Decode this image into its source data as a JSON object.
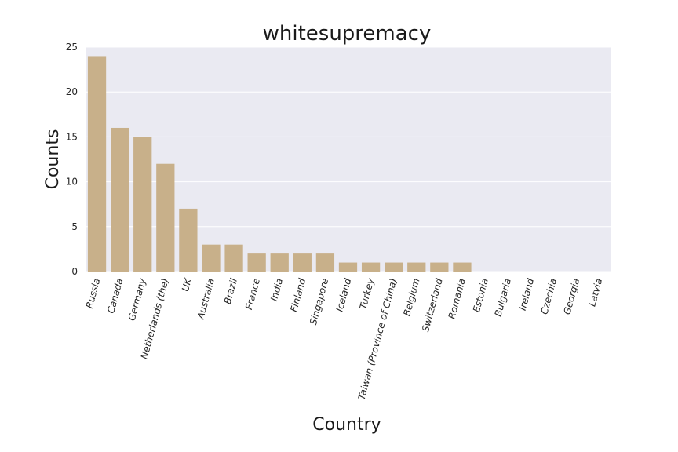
{
  "chart_data": {
    "type": "bar",
    "title": "whitesupremacy",
    "xlabel": "Country",
    "ylabel": "Counts",
    "categories": [
      "Russia",
      "Canada",
      "Germany",
      "Netherlands (the)",
      "UK",
      "Australia",
      "Brazil",
      "France",
      "India",
      "Finland",
      "Singapore",
      "Iceland",
      "Turkey",
      "Taiwan (Province of China)",
      "Belgium",
      "Switzerland",
      "Romania",
      "Estonia",
      "Bulgaria",
      "Ireland",
      "Czechia",
      "Georgia",
      "Latvia"
    ],
    "values": [
      24,
      16,
      15,
      12,
      7,
      3,
      3,
      2,
      2,
      2,
      2,
      1,
      1,
      1,
      1,
      1,
      1,
      0,
      0,
      0,
      0,
      0,
      0
    ],
    "ylim": [
      0,
      25
    ],
    "yticks": [
      0,
      5,
      10,
      15,
      20,
      25
    ],
    "grid": true,
    "bar_color": "#c8b08a",
    "plot_background": "#eaeaf2",
    "grid_color": "#ffffff"
  }
}
